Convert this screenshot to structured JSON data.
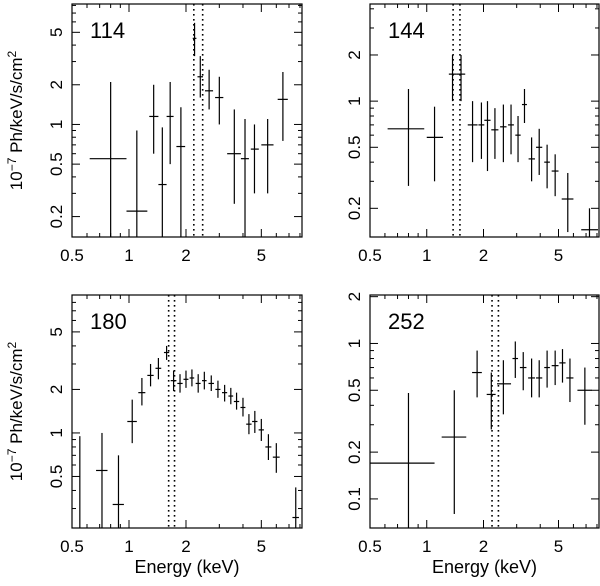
{
  "chart_data": [
    {
      "type": "scatter",
      "panel_label": "114",
      "ylabel": "10",
      "ylabel_exp": "−7",
      "ylabel_tail": " Ph/keV/s/cm",
      "ylabel_sq": "2",
      "xlabel": "",
      "xscale": "log",
      "yscale": "log",
      "xlim": [
        0.5,
        8.2
      ],
      "ylim": [
        0.14,
        8.2
      ],
      "xticks": [
        0.5,
        1,
        2,
        5
      ],
      "xtick_labels": [
        "0.5",
        "1",
        "2",
        "5"
      ],
      "yticks": [
        0.2,
        0.5,
        1,
        2,
        5
      ],
      "ytick_labels": [
        "0.2",
        "0.5",
        "1",
        "2",
        "5"
      ],
      "line_markers": [
        2.2,
        2.45
      ],
      "points": [
        {
          "x": 0.8,
          "y": 0.55,
          "x_lo": 0.62,
          "x_hi": 0.97,
          "y_lo": 0.14,
          "y_hi": 2.1
        },
        {
          "x": 1.1,
          "y": 0.22,
          "x_lo": 0.97,
          "x_hi": 1.25,
          "y_lo": 0.14,
          "y_hi": 0.9
        },
        {
          "x": 1.35,
          "y": 1.15,
          "x_lo": 1.28,
          "x_hi": 1.43,
          "y_lo": 0.6,
          "y_hi": 2.0
        },
        {
          "x": 1.5,
          "y": 0.35,
          "x_lo": 1.43,
          "x_hi": 1.58,
          "y_lo": 0.14,
          "y_hi": 0.95
        },
        {
          "x": 1.65,
          "y": 1.15,
          "x_lo": 1.58,
          "x_hi": 1.72,
          "y_lo": 0.5,
          "y_hi": 2.1
        },
        {
          "x": 1.88,
          "y": 0.68,
          "x_lo": 1.78,
          "x_hi": 1.98,
          "y_lo": 0.14,
          "y_hi": 1.35
        },
        {
          "x": 2.22,
          "y": 4.5,
          "x_lo": 2.17,
          "x_hi": 2.27,
          "y_lo": 3.3,
          "y_hi": 5.9
        },
        {
          "x": 2.38,
          "y": 2.3,
          "x_lo": 2.3,
          "x_hi": 2.46,
          "y_lo": 1.6,
          "y_hi": 3.3
        },
        {
          "x": 2.65,
          "y": 1.8,
          "x_lo": 2.52,
          "x_hi": 2.78,
          "y_lo": 1.3,
          "y_hi": 2.6
        },
        {
          "x": 3.0,
          "y": 1.6,
          "x_lo": 2.85,
          "x_hi": 3.15,
          "y_lo": 1.0,
          "y_hi": 2.3
        },
        {
          "x": 3.6,
          "y": 0.6,
          "x_lo": 3.3,
          "x_hi": 3.9,
          "y_lo": 0.25,
          "y_hi": 1.3
        },
        {
          "x": 4.1,
          "y": 0.55,
          "x_lo": 3.9,
          "x_hi": 4.3,
          "y_lo": 0.14,
          "y_hi": 1.1
        },
        {
          "x": 4.6,
          "y": 0.65,
          "x_lo": 4.4,
          "x_hi": 4.85,
          "y_lo": 0.3,
          "y_hi": 1.0
        },
        {
          "x": 5.4,
          "y": 0.7,
          "x_lo": 5.0,
          "x_hi": 5.8,
          "y_lo": 0.3,
          "y_hi": 1.1
        },
        {
          "x": 6.5,
          "y": 1.55,
          "x_lo": 6.1,
          "x_hi": 6.9,
          "y_lo": 0.75,
          "y_hi": 2.5
        }
      ]
    },
    {
      "type": "scatter",
      "panel_label": "144",
      "ylabel": "",
      "ylabel_exp": "",
      "ylabel_tail": "",
      "ylabel_sq": "",
      "xlabel": "",
      "xscale": "log",
      "yscale": "log",
      "xlim": [
        0.5,
        8.2
      ],
      "ylim": [
        0.13,
        4.3
      ],
      "xticks": [
        0.5,
        1,
        2,
        5
      ],
      "xtick_labels": [
        "0.5",
        "1",
        "2",
        "5"
      ],
      "yticks": [
        0.2,
        0.5,
        1,
        2
      ],
      "ytick_labels": [
        "0.2",
        "0.5",
        "1",
        "2"
      ],
      "line_markers": [
        1.38,
        1.5
      ],
      "points": [
        {
          "x": 0.8,
          "y": 0.66,
          "x_lo": 0.62,
          "x_hi": 0.97,
          "y_lo": 0.28,
          "y_hi": 1.2
        },
        {
          "x": 1.1,
          "y": 0.58,
          "x_lo": 1.0,
          "x_hi": 1.22,
          "y_lo": 0.3,
          "y_hi": 0.92
        },
        {
          "x": 1.37,
          "y": 1.5,
          "x_lo": 1.31,
          "x_hi": 1.44,
          "y_lo": 1.0,
          "y_hi": 2.0
        },
        {
          "x": 1.52,
          "y": 1.5,
          "x_lo": 1.44,
          "x_hi": 1.6,
          "y_lo": 1.0,
          "y_hi": 2.0
        },
        {
          "x": 1.75,
          "y": 0.7,
          "x_lo": 1.65,
          "x_hi": 1.86,
          "y_lo": 0.4,
          "y_hi": 1.0
        },
        {
          "x": 1.95,
          "y": 0.7,
          "x_lo": 1.88,
          "x_hi": 2.02,
          "y_lo": 0.42,
          "y_hi": 0.98
        },
        {
          "x": 2.1,
          "y": 0.75,
          "x_lo": 2.02,
          "x_hi": 2.18,
          "y_lo": 0.35,
          "y_hi": 1.0
        },
        {
          "x": 2.3,
          "y": 0.65,
          "x_lo": 2.2,
          "x_hi": 2.4,
          "y_lo": 0.42,
          "y_hi": 0.9
        },
        {
          "x": 2.55,
          "y": 0.68,
          "x_lo": 2.45,
          "x_hi": 2.65,
          "y_lo": 0.4,
          "y_hi": 0.95
        },
        {
          "x": 2.8,
          "y": 0.7,
          "x_lo": 2.7,
          "x_hi": 2.9,
          "y_lo": 0.45,
          "y_hi": 0.95
        },
        {
          "x": 3.05,
          "y": 0.6,
          "x_lo": 2.95,
          "x_hi": 3.15,
          "y_lo": 0.4,
          "y_hi": 0.8
        },
        {
          "x": 3.3,
          "y": 0.95,
          "x_lo": 3.2,
          "x_hi": 3.4,
          "y_lo": 0.72,
          "y_hi": 1.2
        },
        {
          "x": 3.6,
          "y": 0.42,
          "x_lo": 3.47,
          "x_hi": 3.75,
          "y_lo": 0.3,
          "y_hi": 0.58
        },
        {
          "x": 3.95,
          "y": 0.5,
          "x_lo": 3.8,
          "x_hi": 4.1,
          "y_lo": 0.33,
          "y_hi": 0.66
        },
        {
          "x": 4.35,
          "y": 0.4,
          "x_lo": 4.2,
          "x_hi": 4.5,
          "y_lo": 0.27,
          "y_hi": 0.52
        },
        {
          "x": 4.8,
          "y": 0.35,
          "x_lo": 4.6,
          "x_hi": 5.0,
          "y_lo": 0.24,
          "y_hi": 0.45
        },
        {
          "x": 5.6,
          "y": 0.23,
          "x_lo": 5.2,
          "x_hi": 6.0,
          "y_lo": 0.14,
          "y_hi": 0.34
        },
        {
          "x": 7.3,
          "y": 0.145,
          "x_lo": 6.6,
          "x_hi": 8.1,
          "y_lo": 0.13,
          "y_hi": 0.2
        }
      ]
    },
    {
      "type": "scatter",
      "panel_label": "180",
      "ylabel": "10",
      "ylabel_exp": "−7",
      "ylabel_tail": " Ph/keV/s/cm",
      "ylabel_sq": "2",
      "xlabel": "Energy (keV)",
      "xscale": "log",
      "yscale": "log",
      "xlim": [
        0.5,
        8.2
      ],
      "ylim": [
        0.22,
        9.0
      ],
      "xticks": [
        0.5,
        1,
        2,
        5
      ],
      "xtick_labels": [
        "0.5",
        "1",
        "2",
        "5"
      ],
      "yticks": [
        0.5,
        1,
        2,
        5
      ],
      "ytick_labels": [
        "0.5",
        "1",
        "2",
        "5"
      ],
      "line_markers": [
        1.62,
        1.74
      ],
      "points": [
        {
          "x": 0.55,
          "y": 0.22,
          "x_lo": 0.55,
          "x_hi": 0.55,
          "y_lo": 0.22,
          "y_hi": 0.95
        },
        {
          "x": 0.72,
          "y": 0.55,
          "x_lo": 0.67,
          "x_hi": 0.77,
          "y_lo": 0.22,
          "y_hi": 1.0
        },
        {
          "x": 0.88,
          "y": 0.32,
          "x_lo": 0.82,
          "x_hi": 0.94,
          "y_lo": 0.22,
          "y_hi": 0.7
        },
        {
          "x": 1.04,
          "y": 1.2,
          "x_lo": 0.98,
          "x_hi": 1.1,
          "y_lo": 0.85,
          "y_hi": 1.7
        },
        {
          "x": 1.17,
          "y": 1.9,
          "x_lo": 1.12,
          "x_hi": 1.22,
          "y_lo": 1.55,
          "y_hi": 2.4
        },
        {
          "x": 1.3,
          "y": 2.5,
          "x_lo": 1.25,
          "x_hi": 1.35,
          "y_lo": 2.1,
          "y_hi": 3.0
        },
        {
          "x": 1.43,
          "y": 2.8,
          "x_lo": 1.38,
          "x_hi": 1.48,
          "y_lo": 2.35,
          "y_hi": 3.3
        },
        {
          "x": 1.58,
          "y": 3.6,
          "x_lo": 1.53,
          "x_hi": 1.63,
          "y_lo": 3.2,
          "y_hi": 4.0
        },
        {
          "x": 1.72,
          "y": 2.3,
          "x_lo": 1.66,
          "x_hi": 1.78,
          "y_lo": 1.95,
          "y_hi": 2.7
        },
        {
          "x": 1.86,
          "y": 2.2,
          "x_lo": 1.8,
          "x_hi": 1.92,
          "y_lo": 1.9,
          "y_hi": 2.55
        },
        {
          "x": 2.0,
          "y": 2.35,
          "x_lo": 1.94,
          "x_hi": 2.06,
          "y_lo": 2.05,
          "y_hi": 2.7
        },
        {
          "x": 2.15,
          "y": 2.4,
          "x_lo": 2.09,
          "x_hi": 2.21,
          "y_lo": 2.1,
          "y_hi": 2.75
        },
        {
          "x": 2.32,
          "y": 2.2,
          "x_lo": 2.25,
          "x_hi": 2.39,
          "y_lo": 1.9,
          "y_hi": 2.55
        },
        {
          "x": 2.5,
          "y": 2.3,
          "x_lo": 2.43,
          "x_hi": 2.57,
          "y_lo": 2.0,
          "y_hi": 2.65
        },
        {
          "x": 2.72,
          "y": 2.2,
          "x_lo": 2.63,
          "x_hi": 2.81,
          "y_lo": 1.95,
          "y_hi": 2.5
        },
        {
          "x": 2.95,
          "y": 2.0,
          "x_lo": 2.86,
          "x_hi": 3.04,
          "y_lo": 1.75,
          "y_hi": 2.3
        },
        {
          "x": 3.2,
          "y": 1.9,
          "x_lo": 3.1,
          "x_hi": 3.3,
          "y_lo": 1.65,
          "y_hi": 2.15
        },
        {
          "x": 3.45,
          "y": 1.8,
          "x_lo": 3.35,
          "x_hi": 3.55,
          "y_lo": 1.58,
          "y_hi": 2.05
        },
        {
          "x": 3.7,
          "y": 1.65,
          "x_lo": 3.58,
          "x_hi": 3.82,
          "y_lo": 1.45,
          "y_hi": 1.9
        },
        {
          "x": 4.0,
          "y": 1.5,
          "x_lo": 3.88,
          "x_hi": 4.12,
          "y_lo": 1.3,
          "y_hi": 1.75
        },
        {
          "x": 4.3,
          "y": 1.15,
          "x_lo": 4.16,
          "x_hi": 4.44,
          "y_lo": 0.98,
          "y_hi": 1.35
        },
        {
          "x": 4.62,
          "y": 1.2,
          "x_lo": 4.47,
          "x_hi": 4.77,
          "y_lo": 1.0,
          "y_hi": 1.42
        },
        {
          "x": 5.0,
          "y": 1.05,
          "x_lo": 4.84,
          "x_hi": 5.16,
          "y_lo": 0.88,
          "y_hi": 1.25
        },
        {
          "x": 5.45,
          "y": 0.8,
          "x_lo": 5.25,
          "x_hi": 5.65,
          "y_lo": 0.65,
          "y_hi": 0.98
        },
        {
          "x": 6.0,
          "y": 0.68,
          "x_lo": 5.75,
          "x_hi": 6.25,
          "y_lo": 0.53,
          "y_hi": 0.85
        },
        {
          "x": 7.6,
          "y": 0.26,
          "x_lo": 7.3,
          "x_hi": 7.9,
          "y_lo": 0.22,
          "y_hi": 0.42
        }
      ]
    },
    {
      "type": "scatter",
      "panel_label": "252",
      "ylabel": "",
      "ylabel_exp": "",
      "ylabel_tail": "",
      "ylabel_sq": "",
      "xlabel": "Energy (keV)",
      "xscale": "log",
      "yscale": "log",
      "xlim": [
        0.5,
        8.2
      ],
      "ylim": [
        0.065,
        2.05
      ],
      "xticks": [
        0.5,
        1,
        2,
        5
      ],
      "xtick_labels": [
        "0.5",
        "1",
        "2",
        "5"
      ],
      "yticks": [
        0.1,
        0.2,
        0.5,
        1,
        2
      ],
      "ytick_labels": [
        "0.1",
        "0.2",
        "0.5",
        "1",
        "2"
      ],
      "line_markers": [
        2.22,
        2.4
      ],
      "points": [
        {
          "x": 0.8,
          "y": 0.17,
          "x_lo": 0.5,
          "x_hi": 1.1,
          "y_lo": 0.065,
          "y_hi": 0.48
        },
        {
          "x": 1.4,
          "y": 0.25,
          "x_lo": 1.2,
          "x_hi": 1.62,
          "y_lo": 0.08,
          "y_hi": 0.5
        },
        {
          "x": 1.85,
          "y": 0.65,
          "x_lo": 1.74,
          "x_hi": 1.96,
          "y_lo": 0.45,
          "y_hi": 0.9
        },
        {
          "x": 2.2,
          "y": 0.47,
          "x_lo": 2.08,
          "x_hi": 2.32,
          "y_lo": 0.28,
          "y_hi": 0.65
        },
        {
          "x": 2.55,
          "y": 0.55,
          "x_lo": 2.36,
          "x_hi": 2.8,
          "y_lo": 0.35,
          "y_hi": 0.78
        },
        {
          "x": 2.95,
          "y": 0.8,
          "x_lo": 2.85,
          "x_hi": 3.05,
          "y_lo": 0.6,
          "y_hi": 1.03
        },
        {
          "x": 3.25,
          "y": 0.7,
          "x_lo": 3.12,
          "x_hi": 3.38,
          "y_lo": 0.5,
          "y_hi": 0.88
        },
        {
          "x": 3.6,
          "y": 0.6,
          "x_lo": 3.45,
          "x_hi": 3.75,
          "y_lo": 0.45,
          "y_hi": 0.8
        },
        {
          "x": 3.95,
          "y": 0.6,
          "x_lo": 3.8,
          "x_hi": 4.1,
          "y_lo": 0.45,
          "y_hi": 0.78
        },
        {
          "x": 4.35,
          "y": 0.7,
          "x_lo": 4.2,
          "x_hi": 4.5,
          "y_lo": 0.52,
          "y_hi": 0.9
        },
        {
          "x": 4.8,
          "y": 0.72,
          "x_lo": 4.6,
          "x_hi": 5.0,
          "y_lo": 0.54,
          "y_hi": 0.9
        },
        {
          "x": 5.25,
          "y": 0.75,
          "x_lo": 5.05,
          "x_hi": 5.45,
          "y_lo": 0.56,
          "y_hi": 0.92
        },
        {
          "x": 5.75,
          "y": 0.6,
          "x_lo": 5.5,
          "x_hi": 6.0,
          "y_lo": 0.42,
          "y_hi": 0.8
        },
        {
          "x": 6.9,
          "y": 0.5,
          "x_lo": 6.3,
          "x_hi": 7.5,
          "y_lo": 0.3,
          "y_hi": 0.7
        }
      ]
    }
  ]
}
